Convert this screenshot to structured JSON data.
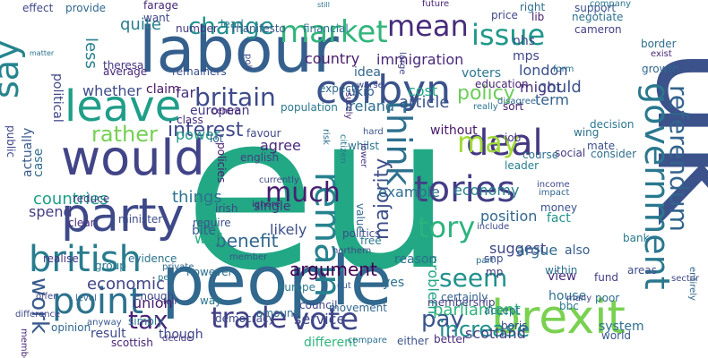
{
  "words": [
    {
      "text": "eu",
      "color": "#22a884"
    },
    {
      "text": "uk",
      "color": "#3b528b"
    },
    {
      "text": "people",
      "color": "#31688e"
    },
    {
      "text": "labour",
      "color": "#35608d"
    },
    {
      "text": "brexit",
      "color": "#7ad151"
    },
    {
      "text": "would",
      "color": "#414487"
    },
    {
      "text": "party",
      "color": "#3e4989"
    },
    {
      "text": "leave",
      "color": "#1f9e89"
    },
    {
      "text": "government",
      "color": "#2a788e"
    },
    {
      "text": "corbyn",
      "color": "#3b528b"
    },
    {
      "text": "british",
      "color": "#287c8e"
    },
    {
      "text": "point",
      "color": "#2c728e"
    },
    {
      "text": "tories",
      "color": "#433e85"
    },
    {
      "text": "deal",
      "color": "#453781"
    },
    {
      "text": "referendum",
      "color": "#33638d"
    },
    {
      "text": "may",
      "color": "#a0da39"
    },
    {
      "text": "remain",
      "color": "#26828e"
    },
    {
      "text": "think",
      "color": "#2d708e"
    },
    {
      "text": "vote",
      "color": "#3f4788"
    },
    {
      "text": "mean",
      "color": "#472c7a"
    },
    {
      "text": "say",
      "color": "#25848e"
    },
    {
      "text": "market",
      "color": "#31b57b"
    },
    {
      "text": "issue",
      "color": "#1f988b"
    },
    {
      "text": "tory",
      "color": "#2db27d"
    },
    {
      "text": "much",
      "color": "#481f70"
    },
    {
      "text": "trade",
      "color": "#424186"
    },
    {
      "text": "seem",
      "color": "#21918c"
    },
    {
      "text": "pay",
      "color": "#3a548c"
    },
    {
      "text": "increase",
      "color": "#21908d"
    },
    {
      "text": "britain",
      "color": "#3e4a89"
    },
    {
      "text": "change",
      "color": "#21908d"
    },
    {
      "text": "tax",
      "color": "#482374"
    },
    {
      "text": "work",
      "color": "#38598c"
    },
    {
      "text": "rather",
      "color": "#75d054"
    },
    {
      "text": "policy",
      "color": "#6ccd5a"
    },
    {
      "text": "country",
      "color": "#481a6c"
    },
    {
      "text": "interest",
      "color": "#3f4889"
    },
    {
      "text": "majority",
      "color": "#3d4e8a"
    },
    {
      "text": "parliament",
      "color": "#2fb47c"
    },
    {
      "text": "argument",
      "color": "#440154"
    },
    {
      "text": "countries",
      "color": "#1f9f88"
    },
    {
      "text": "benefit",
      "color": "#31688e"
    },
    {
      "text": "economy",
      "color": "#277f8e"
    },
    {
      "text": "quite",
      "color": "#277f8e"
    },
    {
      "text": "less",
      "color": "#277f8e"
    },
    {
      "text": "things",
      "color": "#2c728e"
    },
    {
      "text": "immigration",
      "color": "#482878"
    },
    {
      "text": "london",
      "color": "#3c508b"
    },
    {
      "text": "might",
      "color": "#463480"
    },
    {
      "text": "mps",
      "color": "#404688"
    },
    {
      "text": "nhs",
      "color": "#3e4989"
    },
    {
      "text": "economic",
      "color": "#414487"
    },
    {
      "text": "union",
      "color": "#481b6d"
    },
    {
      "text": "scotland",
      "color": "#433e85"
    },
    {
      "text": "service",
      "color": "#3f4889"
    },
    {
      "text": "political",
      "color": "#3f4788"
    },
    {
      "text": "could",
      "color": "#3b528b"
    },
    {
      "text": "term",
      "color": "#34618d"
    },
    {
      "text": "cost",
      "color": "#22a785"
    },
    {
      "text": "article",
      "color": "#3a548c"
    },
    {
      "text": "idea",
      "color": "#31678e"
    },
    {
      "text": "voters",
      "color": "#2a788e"
    },
    {
      "text": "ukip",
      "color": "#34608d"
    },
    {
      "text": "ireland",
      "color": "#2e6e8e"
    },
    {
      "text": "european",
      "color": "#453882"
    },
    {
      "text": "agree",
      "color": "#482979"
    },
    {
      "text": "power",
      "color": "#1f9a8a"
    },
    {
      "text": "far",
      "color": "#46307e"
    },
    {
      "text": "claim",
      "color": "#481467"
    },
    {
      "text": "whether",
      "color": "#3d4d8a"
    },
    {
      "text": "fact",
      "color": "#20938c"
    },
    {
      "text": "position",
      "color": "#31678e"
    },
    {
      "text": "suggest",
      "color": "#3f4788"
    },
    {
      "text": "also",
      "color": "#365d8d"
    },
    {
      "text": "example",
      "color": "#2e6e8e"
    },
    {
      "text": "view",
      "color": "#472d7b"
    },
    {
      "text": "house",
      "color": "#2c728e"
    },
    {
      "text": "likely",
      "color": "#3c508b"
    },
    {
      "text": "well",
      "color": "#27ad81"
    },
    {
      "text": "bite",
      "color": "#38598c"
    },
    {
      "text": "spend",
      "color": "#433d84"
    },
    {
      "text": "though",
      "color": "#3f4788"
    },
    {
      "text": "result",
      "color": "#3e4989"
    },
    {
      "text": "different",
      "color": "#31b57b"
    },
    {
      "text": "problem",
      "color": "#20a486"
    },
    {
      "text": "reason",
      "color": "#2c718e"
    },
    {
      "text": "argue",
      "color": "#2f6b8e"
    },
    {
      "text": "without",
      "color": "#48186a"
    },
    {
      "text": "yes",
      "color": "#2c728e"
    },
    {
      "text": "system",
      "color": "#2e6f8e"
    },
    {
      "text": "single",
      "color": "#463480"
    },
    {
      "text": "clear",
      "color": "#472d7b"
    },
    {
      "text": "public",
      "color": "#3f4889"
    },
    {
      "text": "world",
      "color": "#39568c"
    },
    {
      "text": "money",
      "color": "#3b528b"
    },
    {
      "text": "bbc",
      "color": "#2a788e"
    },
    {
      "text": "many",
      "color": "#404688"
    },
    {
      "text": "snp",
      "color": "#3e4a89"
    },
    {
      "text": "accept",
      "color": "#2c728e"
    },
    {
      "text": "certainly",
      "color": "#33638d"
    },
    {
      "text": "mp",
      "color": "#453781"
    },
    {
      "text": "education",
      "color": "#482475"
    },
    {
      "text": "sort",
      "color": "#481d6f"
    },
    {
      "text": "job",
      "color": "#46327e"
    },
    {
      "text": "course",
      "color": "#2d708e"
    },
    {
      "text": "leader",
      "color": "#277f8e"
    },
    {
      "text": "impact",
      "color": "#32658e"
    },
    {
      "text": "income",
      "color": "#3e4989"
    },
    {
      "text": "wing",
      "color": "#2c728e"
    },
    {
      "text": "mate",
      "color": "#3c4f8a"
    },
    {
      "text": "decision",
      "color": "#2a768e"
    },
    {
      "text": "border",
      "color": "#2e6e8e"
    },
    {
      "text": "growth",
      "color": "#31678e"
    },
    {
      "text": "support",
      "color": "#3b528b"
    },
    {
      "text": "cameron",
      "color": "#433e85"
    },
    {
      "text": "negotiate",
      "color": "#2c728e"
    },
    {
      "text": "lib",
      "color": "#481b6d"
    },
    {
      "text": "price",
      "color": "#3f4788"
    },
    {
      "text": "right",
      "color": "#2e6f8e"
    },
    {
      "text": "company",
      "color": "#2a788e"
    },
    {
      "text": "future",
      "color": "#482475"
    },
    {
      "text": "effect",
      "color": "#3f4889"
    },
    {
      "text": "provide",
      "color": "#31678e"
    },
    {
      "text": "still",
      "color": "#2c728e"
    },
    {
      "text": "farage",
      "color": "#482878"
    },
    {
      "text": "want",
      "color": "#3e4a89"
    },
    {
      "text": "number",
      "color": "#453781"
    },
    {
      "text": "manifesto",
      "color": "#38598c"
    },
    {
      "text": "financial",
      "color": "#2c718e"
    },
    {
      "text": "lead",
      "color": "#2a788e"
    },
    {
      "text": "average",
      "color": "#482878"
    },
    {
      "text": "remainers",
      "color": "#3b528b"
    },
    {
      "text": "theresa",
      "color": "#463480"
    },
    {
      "text": "expect",
      "color": "#31678e"
    },
    {
      "text": "population",
      "color": "#2a788e"
    },
    {
      "text": "favour",
      "color": "#3e4989"
    },
    {
      "text": "english",
      "color": "#433e85"
    },
    {
      "text": "irish",
      "color": "#3f4788"
    },
    {
      "text": "policies",
      "color": "#481d6f"
    },
    {
      "text": "class",
      "color": "#472d7b"
    },
    {
      "text": "actually",
      "color": "#38598c"
    },
    {
      "text": "case",
      "color": "#2e6e8e"
    },
    {
      "text": "reduce",
      "color": "#433d84"
    },
    {
      "text": "minister",
      "color": "#3d4d8a"
    },
    {
      "text": "evidence",
      "color": "#2c728e"
    },
    {
      "text": "enough",
      "color": "#3e4a89"
    },
    {
      "text": "group",
      "color": "#2a788e"
    },
    {
      "text": "level",
      "color": "#31678e"
    },
    {
      "text": "realise",
      "color": "#453781"
    },
    {
      "text": "offer",
      "color": "#3f4889"
    },
    {
      "text": "however",
      "color": "#2c718e"
    },
    {
      "text": "member",
      "color": "#3b528b"
    },
    {
      "text": "way",
      "color": "#2a768e"
    },
    {
      "text": "scottish",
      "color": "#482475"
    },
    {
      "text": "democracy",
      "color": "#3e4989"
    },
    {
      "text": "amount",
      "color": "#2e6f8e"
    },
    {
      "text": "council",
      "color": "#3f4788"
    },
    {
      "text": "europe",
      "color": "#2a788e"
    },
    {
      "text": "movement",
      "color": "#31678e"
    },
    {
      "text": "membership",
      "color": "#433e85"
    },
    {
      "text": "either",
      "color": "#3b528b"
    },
    {
      "text": "better",
      "color": "#482878"
    },
    {
      "text": "boris",
      "color": "#3e4a89"
    },
    {
      "text": "compare",
      "color": "#2c728e"
    },
    {
      "text": "decide",
      "color": "#453781"
    },
    {
      "text": "opinion",
      "color": "#31678e"
    },
    {
      "text": "simply",
      "color": "#2a788e"
    },
    {
      "text": "difference",
      "color": "#3f4889"
    },
    {
      "text": "anyway",
      "color": "#38598c"
    },
    {
      "text": "members",
      "color": "#482475"
    },
    {
      "text": "poor",
      "color": "#2e6e8e"
    },
    {
      "text": "within",
      "color": "#2c728e"
    },
    {
      "text": "fund",
      "color": "#433d84"
    },
    {
      "text": "politics",
      "color": "#3d4d8a"
    },
    {
      "text": "free",
      "color": "#2a788e"
    },
    {
      "text": "value",
      "color": "#31678e"
    },
    {
      "text": "include",
      "color": "#3e4989"
    },
    {
      "text": "northern",
      "color": "#3f4788"
    },
    {
      "text": "part",
      "color": "#2e6f8e"
    },
    {
      "text": "ignore",
      "color": "#482878"
    },
    {
      "text": "require",
      "color": "#3b528b"
    },
    {
      "text": "fair",
      "color": "#453781"
    },
    {
      "text": "per",
      "color": "#2a788e"
    },
    {
      "text": "private",
      "color": "#31678e"
    },
    {
      "text": "currently",
      "color": "#3e4a89"
    },
    {
      "text": "whilst",
      "color": "#2c728e"
    },
    {
      "text": "lot",
      "color": "#38598c"
    },
    {
      "text": "centre",
      "color": "#482475"
    },
    {
      "text": "consider",
      "color": "#2e6e8e"
    },
    {
      "text": "social",
      "color": "#433d84"
    },
    {
      "text": "areas",
      "color": "#3d4d8a"
    },
    {
      "text": "bank",
      "color": "#2a788e"
    },
    {
      "text": "entirely",
      "color": "#31678e"
    },
    {
      "text": "sector",
      "color": "#3f4889"
    },
    {
      "text": "worse",
      "color": "#3e4989"
    },
    {
      "text": "form",
      "color": "#2c718e"
    },
    {
      "text": "hard",
      "color": "#3b528b"
    },
    {
      "text": "exist",
      "color": "#482878"
    },
    {
      "text": "really",
      "color": "#2a768e"
    },
    {
      "text": "disagree",
      "color": "#31678e"
    },
    {
      "text": "large",
      "color": "#3f4788"
    },
    {
      "text": "lower",
      "color": "#453781"
    },
    {
      "text": "risk",
      "color": "#2e6f8e"
    },
    {
      "text": "citizen",
      "color": "#2a788e"
    },
    {
      "text": "cut",
      "color": "#38598c"
    },
    {
      "text": "surely",
      "color": "#482475"
    },
    {
      "text": "poll",
      "color": "#3e4a89"
    },
    {
      "text": "matter",
      "color": "#2c728e"
    }
  ]
}
